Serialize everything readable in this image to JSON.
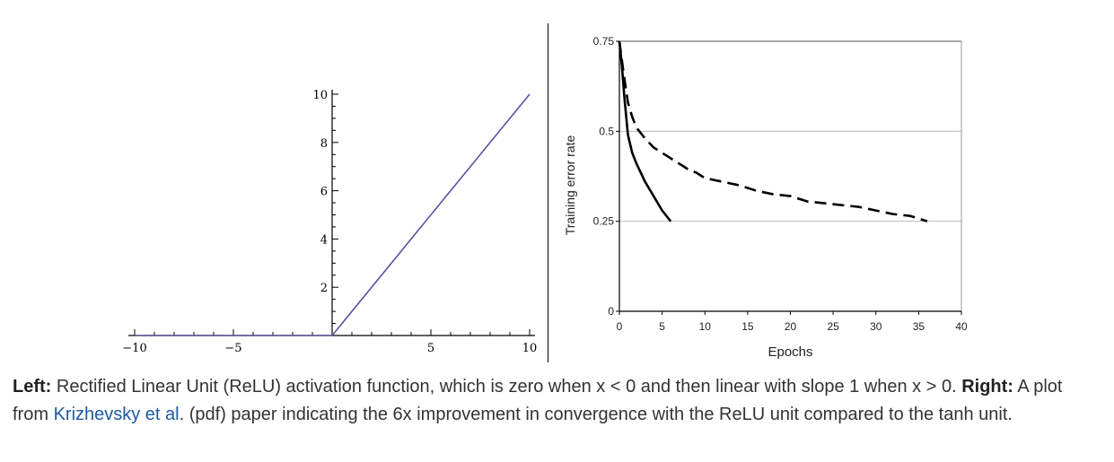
{
  "chart_data": [
    {
      "type": "line",
      "title": "",
      "xlabel": "",
      "ylabel": "",
      "xlim": [
        -10,
        10
      ],
      "ylim": [
        0,
        10
      ],
      "x_ticks": [
        -10,
        -5,
        5,
        10
      ],
      "y_ticks": [
        2,
        4,
        6,
        8,
        10
      ],
      "x_tick_labels": [
        "−10",
        "−5",
        "5",
        "10"
      ],
      "y_tick_labels": [
        "2",
        "4",
        "6",
        "8",
        "10"
      ],
      "grid": false,
      "series": [
        {
          "x": [
            -10,
            0,
            10
          ],
          "y": [
            0,
            0,
            10
          ],
          "color": "#5b52a0"
        }
      ]
    },
    {
      "type": "line",
      "title": "",
      "xlabel": "Epochs",
      "ylabel": "Training error rate",
      "xlim": [
        0,
        40
      ],
      "ylim": [
        0,
        0.75
      ],
      "x_ticks": [
        0,
        5,
        10,
        15,
        20,
        25,
        30,
        35,
        40
      ],
      "x_tick_labels": [
        "0",
        "5",
        "10",
        "15",
        "20",
        "25",
        "30",
        "35",
        "40"
      ],
      "y_ticks": [
        0,
        0.25,
        0.5,
        0.75
      ],
      "y_tick_labels": [
        "0",
        "0.25",
        "0.5",
        "0.75"
      ],
      "grid": true,
      "series": [
        {
          "style": "solid",
          "x": [
            0,
            0.3,
            0.6,
            1,
            1.5,
            2,
            3,
            4,
            5,
            6
          ],
          "y": [
            0.75,
            0.68,
            0.59,
            0.49,
            0.44,
            0.41,
            0.36,
            0.32,
            0.28,
            0.25
          ]
        },
        {
          "style": "dashed",
          "x": [
            0,
            0.5,
            1,
            1.5,
            2,
            3,
            4,
            5,
            6,
            7,
            8,
            9,
            10,
            12,
            14,
            16,
            18,
            20,
            22,
            24,
            26,
            28,
            30,
            32,
            34,
            36
          ],
          "y": [
            0.75,
            0.66,
            0.58,
            0.54,
            0.51,
            0.48,
            0.455,
            0.44,
            0.425,
            0.41,
            0.395,
            0.385,
            0.37,
            0.36,
            0.35,
            0.335,
            0.325,
            0.32,
            0.305,
            0.3,
            0.295,
            0.29,
            0.28,
            0.27,
            0.265,
            0.25
          ]
        }
      ]
    }
  ],
  "caption": {
    "left_label": "Left:",
    "left_text": " Rectified Linear Unit (ReLU) activation function, which is zero when x < 0 and then linear with slope 1 when x > 0. ",
    "right_label": "Right:",
    "right_text_1": " A plot from ",
    "link_text": "Krizhevsky et al",
    "right_text_2": ". (pdf) paper indicating the 6x improvement in convergence with the ReLU unit compared to the tanh unit."
  }
}
